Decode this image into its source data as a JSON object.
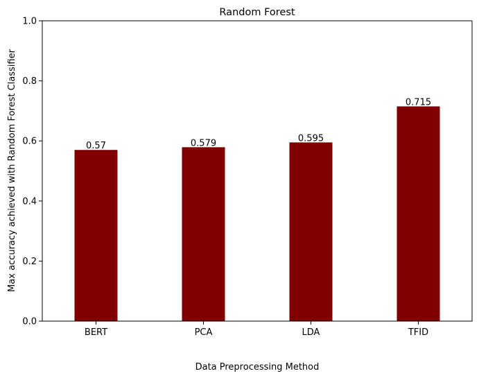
{
  "chart_data": {
    "type": "bar",
    "title": "Random Forest",
    "xlabel": "Data Preprocessing Method",
    "ylabel": "Max accuracy achieved with Random Forest Classifier",
    "categories": [
      "BERT",
      "PCA",
      "LDA",
      "TFID"
    ],
    "values": [
      0.57,
      0.579,
      0.595,
      0.715
    ],
    "value_labels": [
      "0.57",
      "0.579",
      "0.595",
      "0.715"
    ],
    "ylim": [
      0,
      1
    ],
    "yticks": [
      0.0,
      0.2,
      0.4,
      0.6,
      0.8,
      1.0
    ],
    "ytick_labels": [
      "0.0",
      "0.2",
      "0.4",
      "0.6",
      "0.8",
      "1.0"
    ],
    "bar_color": "#800000",
    "grid": false,
    "legend": "none"
  }
}
